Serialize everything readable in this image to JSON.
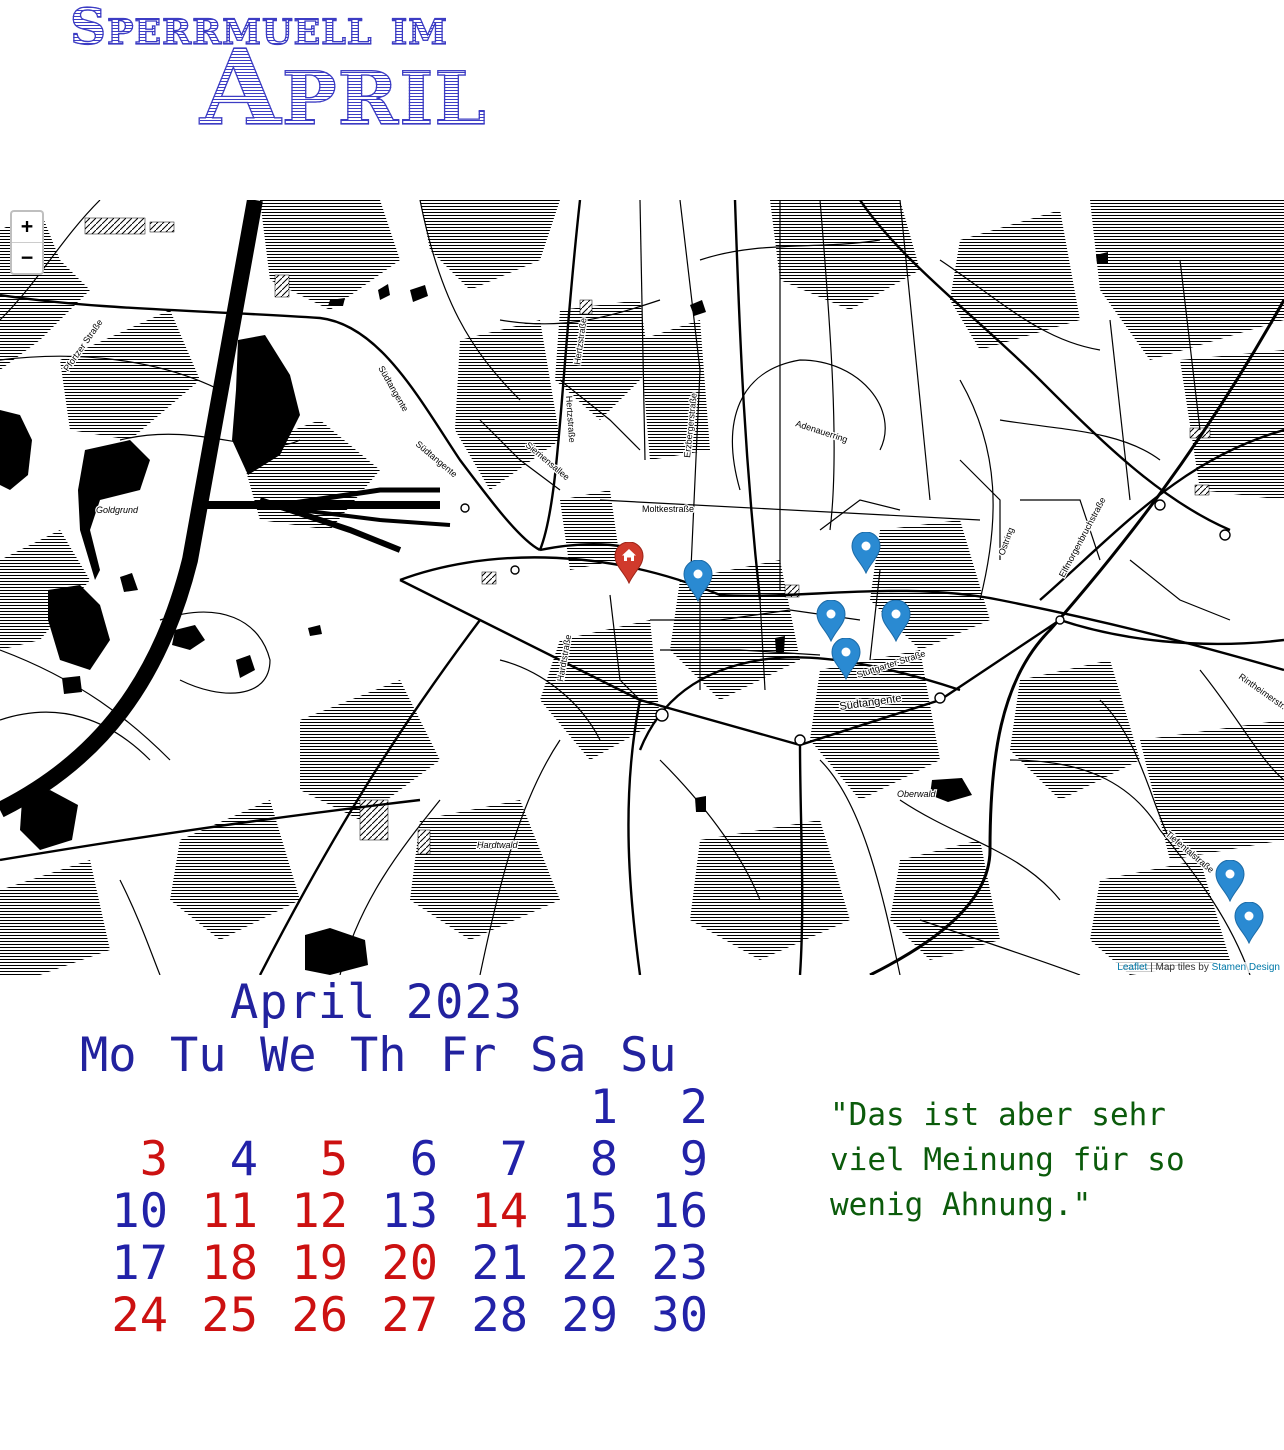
{
  "header": {
    "line1": "Sperrmuell im",
    "line2": "April"
  },
  "map": {
    "zoom_in": "+",
    "zoom_out": "−",
    "labels": [
      "Südtangente",
      "Südtangente",
      "Goldgrund",
      "Pfortzer Straße",
      "Hertzstraße",
      "Hertzstraße",
      "Siemensallee",
      "Erzbergerstraße",
      "Moltkestraße",
      "Adenauerring",
      "Elfmorgenbruchstraße",
      "Ostring",
      "Hardtstraße",
      "Stuttgarter Straße",
      "Südtangente",
      "Rintheimerstr.",
      "Oberwald",
      "Hardtwald",
      "Tiefentalstraße"
    ],
    "markers": [
      {
        "name": "home-marker",
        "color": "#d03a2c",
        "icon": "home-icon"
      },
      {
        "name": "location-marker",
        "color": "#2a8ad2"
      },
      {
        "name": "location-marker",
        "color": "#2a8ad2"
      },
      {
        "name": "location-marker",
        "color": "#2a8ad2"
      },
      {
        "name": "location-marker",
        "color": "#2a8ad2"
      },
      {
        "name": "location-marker",
        "color": "#2a8ad2"
      },
      {
        "name": "location-marker",
        "color": "#2a8ad2"
      },
      {
        "name": "location-marker",
        "color": "#2a8ad2"
      }
    ],
    "attribution": {
      "leaflet": "Leaflet",
      "separator": " | Map tiles by ",
      "provider": "Stamen Design"
    }
  },
  "calendar": {
    "title": "April 2023",
    "weekdays": [
      "Mo",
      "Tu",
      "We",
      "Th",
      "Fr",
      "Sa",
      "Su"
    ],
    "weeks": [
      [
        null,
        null,
        null,
        null,
        null,
        {
          "d": "1",
          "c": "blue"
        },
        {
          "d": "2",
          "c": "blue"
        }
      ],
      [
        {
          "d": "3",
          "c": "red"
        },
        {
          "d": "4",
          "c": "blue"
        },
        {
          "d": "5",
          "c": "red"
        },
        {
          "d": "6",
          "c": "blue"
        },
        {
          "d": "7",
          "c": "blue"
        },
        {
          "d": "8",
          "c": "blue"
        },
        {
          "d": "9",
          "c": "blue"
        }
      ],
      [
        {
          "d": "10",
          "c": "blue"
        },
        {
          "d": "11",
          "c": "red"
        },
        {
          "d": "12",
          "c": "red"
        },
        {
          "d": "13",
          "c": "blue"
        },
        {
          "d": "14",
          "c": "red"
        },
        {
          "d": "15",
          "c": "blue"
        },
        {
          "d": "16",
          "c": "blue"
        }
      ],
      [
        {
          "d": "17",
          "c": "blue"
        },
        {
          "d": "18",
          "c": "red"
        },
        {
          "d": "19",
          "c": "red"
        },
        {
          "d": "20",
          "c": "red"
        },
        {
          "d": "21",
          "c": "blue"
        },
        {
          "d": "22",
          "c": "blue"
        },
        {
          "d": "23",
          "c": "blue"
        }
      ],
      [
        {
          "d": "24",
          "c": "red"
        },
        {
          "d": "25",
          "c": "red"
        },
        {
          "d": "26",
          "c": "red"
        },
        {
          "d": "27",
          "c": "red"
        },
        {
          "d": "28",
          "c": "blue"
        },
        {
          "d": "29",
          "c": "blue"
        },
        {
          "d": "30",
          "c": "blue"
        }
      ]
    ]
  },
  "quote": "\"Das ist aber sehr viel Meinung für so wenig Ahnung.\""
}
